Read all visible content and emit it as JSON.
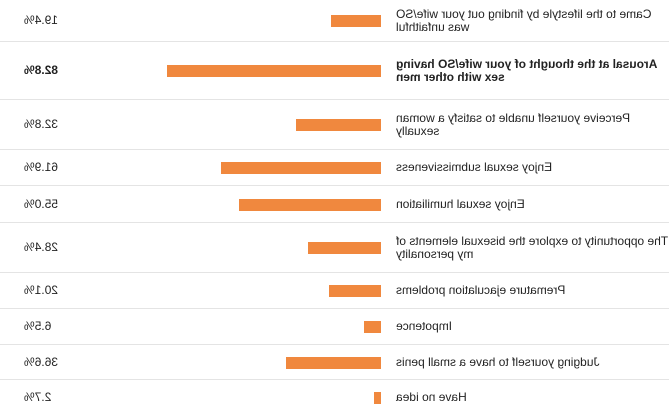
{
  "chart_data": {
    "type": "bar",
    "orientation": "horizontal",
    "mirrored": true,
    "bar_color": "#f0883e",
    "xlim": [
      0,
      100
    ],
    "categories": [
      "Came to the lifestyle by finding out your wife/SO was unfaithful",
      "Arousal at the thought of your wife/SO having sex with other men",
      "Perceive yourself unable to satisfy a woman sexually",
      "Enjoy sexual submissiveness",
      "Enjoy sexual humiliation",
      "The opportunity to explore the bisexual elements of my personality",
      "Premature ejaculation problems",
      "Impotence",
      "Judging yourself to have a small penis",
      "Have no idea"
    ],
    "values": [
      19.4,
      82.8,
      32.8,
      61.9,
      55.0,
      28.4,
      20.1,
      6.5,
      36.6,
      2.7
    ],
    "value_labels": [
      "19.4%",
      "82.8%",
      "32.8%",
      "61.9%",
      "55.0%",
      "28.4%",
      "20.1%",
      "6.5%",
      "36.6%",
      "2.7%"
    ],
    "highlighted_index": 1
  }
}
